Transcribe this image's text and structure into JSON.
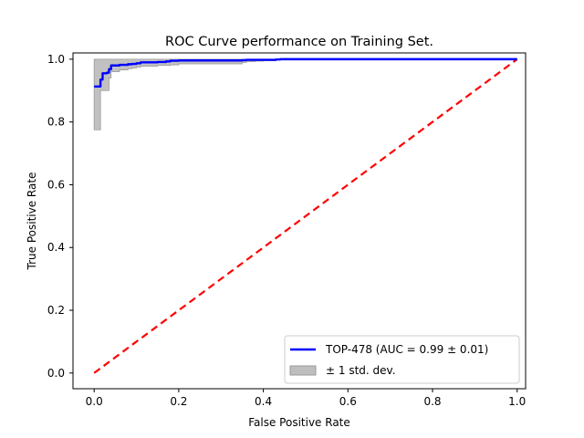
{
  "chart_data": {
    "type": "line",
    "title": "ROC Curve performance on Training Set.",
    "xlabel": "False Positive Rate",
    "ylabel": "True Positive Rate",
    "xlim": [
      -0.05,
      1.02
    ],
    "ylim": [
      -0.05,
      1.02
    ],
    "xticks": [
      0.0,
      0.2,
      0.4,
      0.6,
      0.8,
      1.0
    ],
    "yticks": [
      0.0,
      0.2,
      0.4,
      0.6,
      0.8,
      1.0
    ],
    "xtick_labels": [
      "0.0",
      "0.2",
      "0.4",
      "0.6",
      "0.8",
      "1.0"
    ],
    "ytick_labels": [
      "0.0",
      "0.2",
      "0.4",
      "0.6",
      "0.8",
      "1.0"
    ],
    "grid": false,
    "legend_position": "lower-right",
    "series": [
      {
        "name": "TOP-478 (AUC = 0.99 ± 0.01)",
        "kind": "line",
        "color": "#0000ff",
        "x": [
          0.0,
          0.01,
          0.015,
          0.02,
          0.03,
          0.035,
          0.04,
          0.06,
          0.08,
          0.09,
          0.1,
          0.11,
          0.12,
          0.15,
          0.17,
          0.18,
          0.2,
          0.25,
          0.33,
          0.35,
          0.36,
          0.38,
          0.4,
          0.43,
          0.44,
          0.46,
          0.5,
          0.6,
          0.7,
          0.8,
          0.9,
          1.0
        ],
        "y": [
          0.913,
          0.913,
          0.935,
          0.955,
          0.957,
          0.968,
          0.98,
          0.982,
          0.984,
          0.985,
          0.987,
          0.99,
          0.99,
          0.991,
          0.993,
          0.995,
          0.996,
          0.996,
          0.996,
          0.997,
          0.998,
          0.998,
          0.998,
          0.999,
          1.0,
          1.0,
          1.0,
          1.0,
          1.0,
          1.0,
          1.0,
          1.0
        ]
      },
      {
        "name": "± 1 std. dev.",
        "kind": "band",
        "color": "#bebebe",
        "edge_color": "#999999",
        "x": [
          0.0,
          0.01,
          0.015,
          0.02,
          0.03,
          0.035,
          0.04,
          0.06,
          0.08,
          0.09,
          0.1,
          0.11,
          0.12,
          0.15,
          0.17,
          0.18,
          0.2,
          0.25,
          0.33,
          0.35,
          0.36,
          0.38,
          0.4,
          0.43,
          0.44,
          0.46,
          0.5,
          0.6,
          0.7,
          0.8,
          0.9,
          1.0
        ],
        "upper": [
          1.0,
          1.0,
          1.0,
          1.0,
          1.0,
          1.0,
          1.0,
          1.0,
          1.0,
          1.0,
          1.0,
          1.0,
          1.0,
          1.0,
          1.0,
          1.0,
          1.0,
          1.0,
          1.0,
          1.0,
          1.0,
          1.0,
          1.0,
          1.0,
          1.0,
          1.0,
          1.0,
          1.0,
          1.0,
          1.0,
          1.0,
          1.0
        ],
        "lower": [
          0.775,
          0.775,
          0.9,
          0.9,
          0.9,
          0.94,
          0.96,
          0.966,
          0.97,
          0.972,
          0.975,
          0.978,
          0.978,
          0.98,
          0.98,
          0.982,
          0.985,
          0.985,
          0.985,
          0.99,
          0.992,
          0.994,
          0.995,
          0.998,
          1.0,
          1.0,
          1.0,
          1.0,
          1.0,
          1.0,
          1.0,
          1.0
        ]
      },
      {
        "kind": "reference",
        "color": "#ff0000",
        "dashed": true,
        "x": [
          0.0,
          1.0
        ],
        "y": [
          0.0,
          1.0
        ]
      }
    ]
  },
  "legend": {
    "items": [
      {
        "label": "TOP-478 (AUC = 0.99 ± 0.01)",
        "swatch": "line",
        "color": "#0000ff"
      },
      {
        "label": "± 1 std. dev.",
        "swatch": "patch",
        "color": "#bebebe"
      }
    ]
  }
}
